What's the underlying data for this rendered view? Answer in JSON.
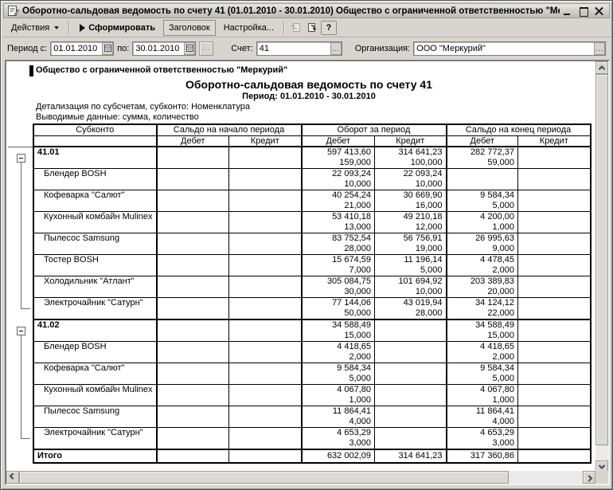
{
  "window": {
    "title": "Оборотно-сальдовая ведомость по счету 41 (01.01.2010 - 30.01.2010) Общество с ограниченной ответственностью \"Меркурий\""
  },
  "toolbar": {
    "actions_label": "Действия",
    "generate_label": "Сформировать",
    "header_label": "Заголовок",
    "settings_label": "Настройка...",
    "help_label": "?"
  },
  "filters": {
    "period_from_label": "Период с:",
    "period_from": "01.01.2010",
    "period_to_label": "по:",
    "period_to": "30.01.2010",
    "period_browse_label": "...",
    "account_label": "Счет:",
    "account": "41",
    "account_browse_label": "...",
    "org_label": "Организация:",
    "org": "ООО \"Меркурий\"",
    "org_browse_label": "..."
  },
  "report": {
    "company": "Общество с ограниченной ответственностью \"Меркурий\"",
    "title": "Оборотно-сальдовая ведомость по счету 41",
    "period": "Период: 01.01.2010 - 30.01.2010",
    "detail1": "Детализация по субсчетам, субконто: Номенклатура",
    "detail2": "Выводимые данные: сумма, количество"
  },
  "table": {
    "col_subconto": "Субконто",
    "group_begin": "Сальдо на начало периода",
    "group_turn": "Оборот за период",
    "group_end": "Сальдо на конец периода",
    "debit_label": "Дебет",
    "credit_label": "Кредит",
    "groups": [
      {
        "start": 0,
        "end": 7
      },
      {
        "start": 8,
        "end": 13
      }
    ],
    "rows": [
      {
        "name": "41.01",
        "bold": true,
        "cells": [
          [
            "",
            ""
          ],
          [
            "",
            ""
          ],
          [
            "597 413,60",
            "159,000"
          ],
          [
            "314 641,23",
            "100,000"
          ],
          [
            "282 772,37",
            "59,000"
          ],
          [
            "",
            ""
          ]
        ]
      },
      {
        "name": "Блендер BOSH",
        "indent": true,
        "cells": [
          [
            "",
            ""
          ],
          [
            "",
            ""
          ],
          [
            "22 093,24",
            "10,000"
          ],
          [
            "22 093,24",
            "10,000"
          ],
          [
            "",
            ""
          ],
          [
            "",
            ""
          ]
        ]
      },
      {
        "name": "Кофеварка \"Салют\"",
        "indent": true,
        "cells": [
          [
            "",
            ""
          ],
          [
            "",
            ""
          ],
          [
            "40 254,24",
            "21,000"
          ],
          [
            "30 669,90",
            "16,000"
          ],
          [
            "9 584,34",
            "5,000"
          ],
          [
            "",
            ""
          ]
        ]
      },
      {
        "name": "Кухонный комбайн Mulinex",
        "indent": true,
        "cells": [
          [
            "",
            ""
          ],
          [
            "",
            ""
          ],
          [
            "53 410,18",
            "13,000"
          ],
          [
            "49 210,18",
            "12,000"
          ],
          [
            "4 200,00",
            "1,000"
          ],
          [
            "",
            ""
          ]
        ]
      },
      {
        "name": "Пылесос Samsung",
        "indent": true,
        "cells": [
          [
            "",
            ""
          ],
          [
            "",
            ""
          ],
          [
            "83 752,54",
            "28,000"
          ],
          [
            "56 756,91",
            "19,000"
          ],
          [
            "26 995,63",
            "9,000"
          ],
          [
            "",
            ""
          ]
        ]
      },
      {
        "name": "Тостер BOSH",
        "indent": true,
        "cells": [
          [
            "",
            ""
          ],
          [
            "",
            ""
          ],
          [
            "15 674,59",
            "7,000"
          ],
          [
            "11 196,14",
            "5,000"
          ],
          [
            "4 478,45",
            "2,000"
          ],
          [
            "",
            ""
          ]
        ]
      },
      {
        "name": "Холодильник \"Атлант\"",
        "indent": true,
        "cells": [
          [
            "",
            ""
          ],
          [
            "",
            ""
          ],
          [
            "305 084,75",
            "30,000"
          ],
          [
            "101 694,92",
            "10,000"
          ],
          [
            "203 389,83",
            "20,000"
          ],
          [
            "",
            ""
          ]
        ]
      },
      {
        "name": "Электрочайник \"Сатурн\"",
        "indent": true,
        "cells": [
          [
            "",
            ""
          ],
          [
            "",
            ""
          ],
          [
            "77 144,06",
            "50,000"
          ],
          [
            "43 019,94",
            "28,000"
          ],
          [
            "34 124,12",
            "22,000"
          ],
          [
            "",
            ""
          ]
        ]
      },
      {
        "name": "41.02",
        "bold": true,
        "cells": [
          [
            "",
            ""
          ],
          [
            "",
            ""
          ],
          [
            "34 588,49",
            "15,000"
          ],
          [
            "",
            ""
          ],
          [
            "34 588,49",
            "15,000"
          ],
          [
            "",
            ""
          ]
        ]
      },
      {
        "name": "Блендер BOSH",
        "indent": true,
        "cells": [
          [
            "",
            ""
          ],
          [
            "",
            ""
          ],
          [
            "4 418,65",
            "2,000"
          ],
          [
            "",
            ""
          ],
          [
            "4 418,65",
            "2,000"
          ],
          [
            "",
            ""
          ]
        ]
      },
      {
        "name": "Кофеварка \"Салют\"",
        "indent": true,
        "cells": [
          [
            "",
            ""
          ],
          [
            "",
            ""
          ],
          [
            "9 584,34",
            "5,000"
          ],
          [
            "",
            ""
          ],
          [
            "9 584,34",
            "5,000"
          ],
          [
            "",
            ""
          ]
        ]
      },
      {
        "name": "Кухонный комбайн Mulinex",
        "indent": true,
        "cells": [
          [
            "",
            ""
          ],
          [
            "",
            ""
          ],
          [
            "4 067,80",
            "1,000"
          ],
          [
            "",
            ""
          ],
          [
            "4 067,80",
            "1,000"
          ],
          [
            "",
            ""
          ]
        ]
      },
      {
        "name": "Пылесос Samsung",
        "indent": true,
        "cells": [
          [
            "",
            ""
          ],
          [
            "",
            ""
          ],
          [
            "11 864,41",
            "4,000"
          ],
          [
            "",
            ""
          ],
          [
            "11 864,41",
            "4,000"
          ],
          [
            "",
            ""
          ]
        ]
      },
      {
        "name": "Электрочайник \"Сатурн\"",
        "indent": true,
        "cells": [
          [
            "",
            ""
          ],
          [
            "",
            ""
          ],
          [
            "4 653,29",
            "3,000"
          ],
          [
            "",
            ""
          ],
          [
            "4 653,29",
            "3,000"
          ],
          [
            "",
            ""
          ]
        ]
      },
      {
        "name": "Итого",
        "bold": true,
        "total": true,
        "cells": [
          [
            "",
            ""
          ],
          [
            "",
            ""
          ],
          [
            "632 002,09",
            ""
          ],
          [
            "314 641,23",
            ""
          ],
          [
            "317 360,86",
            ""
          ],
          [
            "",
            ""
          ]
        ]
      }
    ]
  }
}
